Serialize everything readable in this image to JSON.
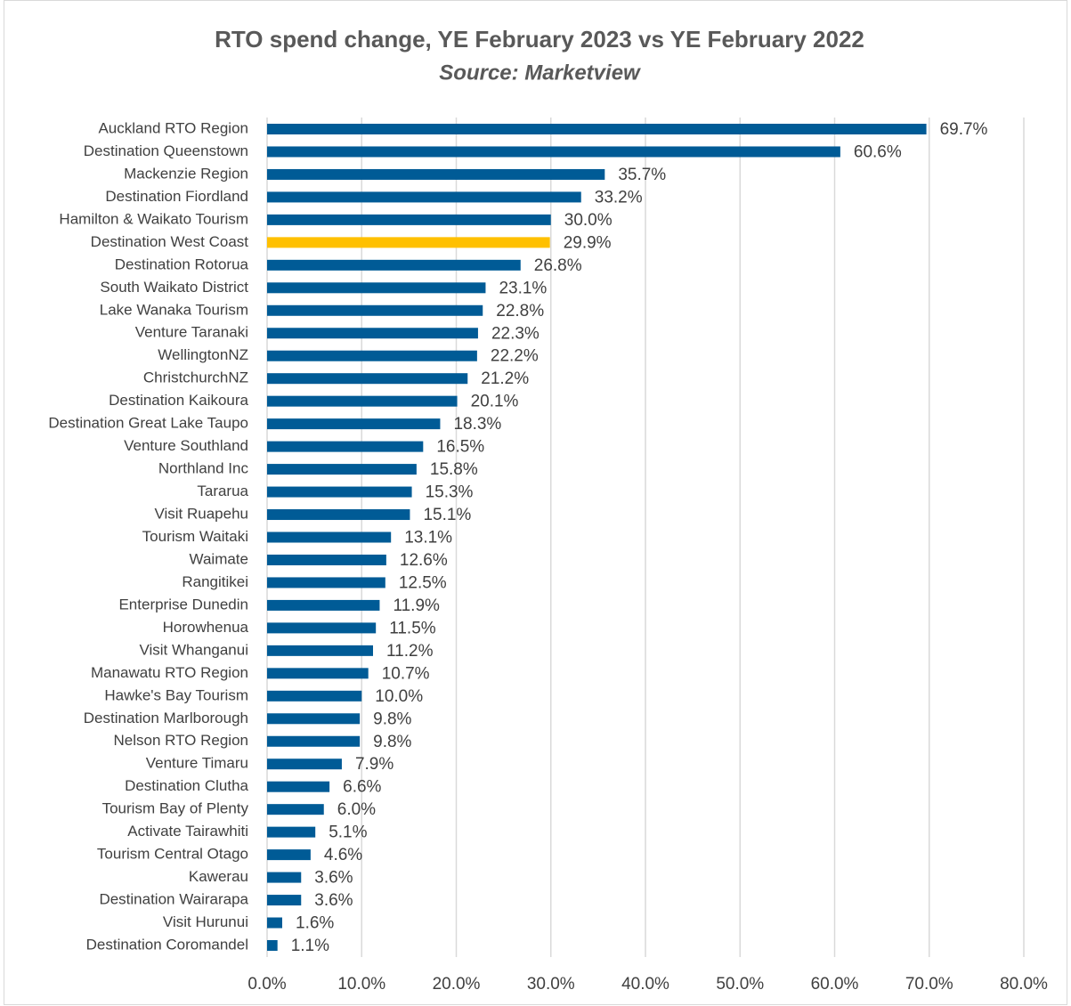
{
  "chart_data": {
    "type": "barh",
    "title": "RTO spend change, YE February 2023 vs YE February 2022",
    "subtitle": "Source: Marketview",
    "categories": [
      "Auckland RTO Region",
      "Destination Queenstown",
      "Mackenzie Region",
      "Destination Fiordland",
      "Hamilton & Waikato Tourism",
      "Destination West Coast",
      "Destination Rotorua",
      "South Waikato District",
      "Lake Wanaka Tourism",
      "Venture Taranaki",
      "WellingtonNZ",
      "ChristchurchNZ",
      "Destination Kaikoura",
      "Destination Great Lake Taupo",
      "Venture Southland",
      "Northland Inc",
      "Tararua",
      "Visit Ruapehu",
      "Tourism Waitaki",
      "Waimate",
      "Rangitikei",
      "Enterprise Dunedin",
      "Horowhenua",
      "Visit Whanganui",
      "Manawatu RTO Region",
      "Hawke's Bay Tourism",
      "Destination Marlborough",
      "Nelson RTO Region",
      "Venture Timaru",
      "Destination Clutha",
      "Tourism Bay of Plenty",
      "Activate Tairawhiti",
      "Tourism Central Otago",
      "Kawerau",
      "Destination Wairarapa",
      "Visit Hurunui",
      "Destination Coromandel"
    ],
    "values": [
      69.7,
      60.6,
      35.7,
      33.2,
      30.0,
      29.9,
      26.8,
      23.1,
      22.8,
      22.3,
      22.2,
      21.2,
      20.1,
      18.3,
      16.5,
      15.8,
      15.3,
      15.1,
      13.1,
      12.6,
      12.5,
      11.9,
      11.5,
      11.2,
      10.7,
      10.0,
      9.8,
      9.8,
      7.9,
      6.6,
      6.0,
      5.1,
      4.6,
      3.6,
      3.6,
      1.6,
      1.1
    ],
    "value_labels": [
      "69.7%",
      "60.6%",
      "35.7%",
      "33.2%",
      "30.0%",
      "29.9%",
      "26.8%",
      "23.1%",
      "22.8%",
      "22.3%",
      "22.2%",
      "21.2%",
      "20.1%",
      "18.3%",
      "16.5%",
      "15.8%",
      "15.3%",
      "15.1%",
      "13.1%",
      "12.6%",
      "12.5%",
      "11.9%",
      "11.5%",
      "11.2%",
      "10.7%",
      "10.0%",
      "9.8%",
      "9.8%",
      "7.9%",
      "6.6%",
      "6.0%",
      "5.1%",
      "4.6%",
      "3.6%",
      "3.6%",
      "1.6%",
      "1.1%"
    ],
    "colors": [
      "#005b96",
      "#005b96",
      "#005b96",
      "#005b96",
      "#005b96",
      "#ffc000",
      "#005b96",
      "#005b96",
      "#005b96",
      "#005b96",
      "#005b96",
      "#005b96",
      "#005b96",
      "#005b96",
      "#005b96",
      "#005b96",
      "#005b96",
      "#005b96",
      "#005b96",
      "#005b96",
      "#005b96",
      "#005b96",
      "#005b96",
      "#005b96",
      "#005b96",
      "#005b96",
      "#005b96",
      "#005b96",
      "#005b96",
      "#005b96",
      "#005b96",
      "#005b96",
      "#005b96",
      "#005b96",
      "#005b96",
      "#005b96",
      "#005b96"
    ],
    "xlim": [
      0,
      80
    ],
    "xticks": [
      {
        "value": 0,
        "label": "0.0%"
      },
      {
        "value": 10,
        "label": "10.0%"
      },
      {
        "value": 20,
        "label": "20.0%"
      },
      {
        "value": 30,
        "label": "30.0%"
      },
      {
        "value": 40,
        "label": "40.0%"
      },
      {
        "value": 50,
        "label": "50.0%"
      },
      {
        "value": 60,
        "label": "60.0%"
      },
      {
        "value": 70,
        "label": "70.0%"
      },
      {
        "value": 80,
        "label": "80.0%"
      }
    ],
    "grid": true
  }
}
